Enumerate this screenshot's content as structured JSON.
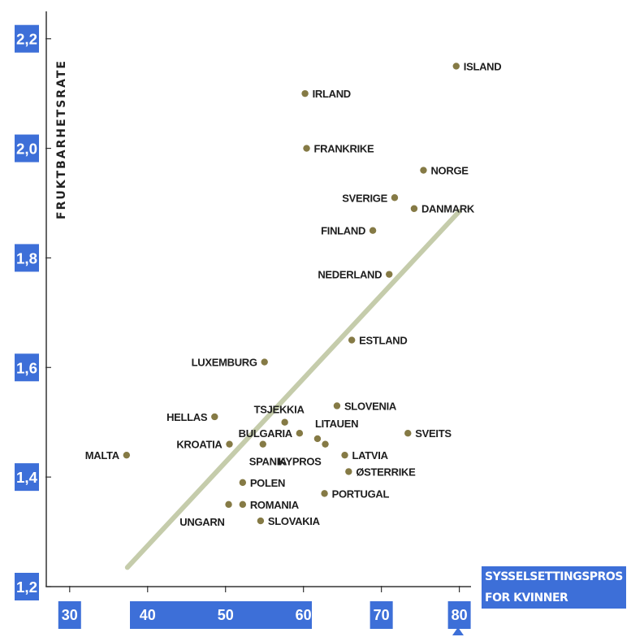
{
  "chart_data": {
    "type": "scatter",
    "title": "",
    "ylabel": "FRUKTBARHETSRATE",
    "xlabel_lines": [
      "SYSSELSETTINGSPROSENT",
      "FOR KVINNER"
    ],
    "xlim": [
      27,
      81.5
    ],
    "ylim": [
      1.2,
      2.25
    ],
    "xticks": [
      30,
      40,
      50,
      60,
      70,
      80
    ],
    "xtick_labels": [
      "30",
      "40",
      "50",
      "60",
      "70",
      "80"
    ],
    "yticks": [
      1.2,
      1.4,
      1.6,
      1.8,
      2.0,
      2.2
    ],
    "ytick_labels": [
      "1,2",
      "1,4",
      "1,6",
      "1,8",
      "2,0",
      "2,2"
    ],
    "grid": false,
    "trendline": {
      "x": [
        37.4,
        80.0
      ],
      "y": [
        1.235,
        1.885
      ]
    },
    "colors": {
      "point": "#857a45",
      "trendline": "#c5ccab",
      "tick_background": "#3d6fd8",
      "tick_text": "#ffffff",
      "axis": "#333333"
    },
    "points": [
      {
        "label": "ISLAND",
        "x": 79.6,
        "y": 2.15,
        "side": "right"
      },
      {
        "label": "IRLAND",
        "x": 60.2,
        "y": 2.1,
        "side": "right"
      },
      {
        "label": "FRANKRIKE",
        "x": 60.4,
        "y": 2.0,
        "side": "right"
      },
      {
        "label": "NORGE",
        "x": 75.4,
        "y": 1.96,
        "side": "right"
      },
      {
        "label": "SVERIGE",
        "x": 71.7,
        "y": 1.91,
        "side": "left"
      },
      {
        "label": "DANMARK",
        "x": 74.2,
        "y": 1.89,
        "side": "right"
      },
      {
        "label": "FINLAND",
        "x": 68.9,
        "y": 1.85,
        "side": "left"
      },
      {
        "label": "NEDERLAND",
        "x": 71.0,
        "y": 1.77,
        "side": "left"
      },
      {
        "label": "ESTLAND",
        "x": 66.2,
        "y": 1.65,
        "side": "right"
      },
      {
        "label": "LUXEMBURG",
        "x": 55.0,
        "y": 1.61,
        "side": "left"
      },
      {
        "label": "SLOVENIA",
        "x": 64.3,
        "y": 1.53,
        "side": "right"
      },
      {
        "label": "HELLAS",
        "x": 48.6,
        "y": 1.51,
        "side": "left"
      },
      {
        "label": "TSJEKKIA",
        "x": 57.6,
        "y": 1.5,
        "side": "left-above"
      },
      {
        "label": "SVEITS",
        "x": 73.4,
        "y": 1.48,
        "side": "right"
      },
      {
        "label": "BULGARIA",
        "x": 59.5,
        "y": 1.48,
        "side": "left"
      },
      {
        "label": "LITAUEN",
        "x": 61.8,
        "y": 1.47,
        "side": "right-above"
      },
      {
        "label": "KYPROS",
        "x": 62.8,
        "y": 1.46,
        "side": "left-below"
      },
      {
        "label": "KROATIA",
        "x": 50.5,
        "y": 1.46,
        "side": "left"
      },
      {
        "label": "SPANIA",
        "x": 54.8,
        "y": 1.46,
        "side": "below"
      },
      {
        "label": "MALTA",
        "x": 37.3,
        "y": 1.44,
        "side": "left"
      },
      {
        "label": "LATVIA",
        "x": 65.3,
        "y": 1.44,
        "side": "right"
      },
      {
        "label": "ØSTERRIKE",
        "x": 65.8,
        "y": 1.41,
        "side": "right"
      },
      {
        "label": "POLEN",
        "x": 52.2,
        "y": 1.39,
        "side": "right"
      },
      {
        "label": "PORTUGAL",
        "x": 62.7,
        "y": 1.37,
        "side": "right"
      },
      {
        "label": "ROMANIA",
        "x": 52.2,
        "y": 1.35,
        "side": "right"
      },
      {
        "label": "UNGARN",
        "x": 50.4,
        "y": 1.35,
        "side": "left-below"
      },
      {
        "label": "SLOVAKIA",
        "x": 54.5,
        "y": 1.32,
        "side": "right"
      }
    ]
  }
}
